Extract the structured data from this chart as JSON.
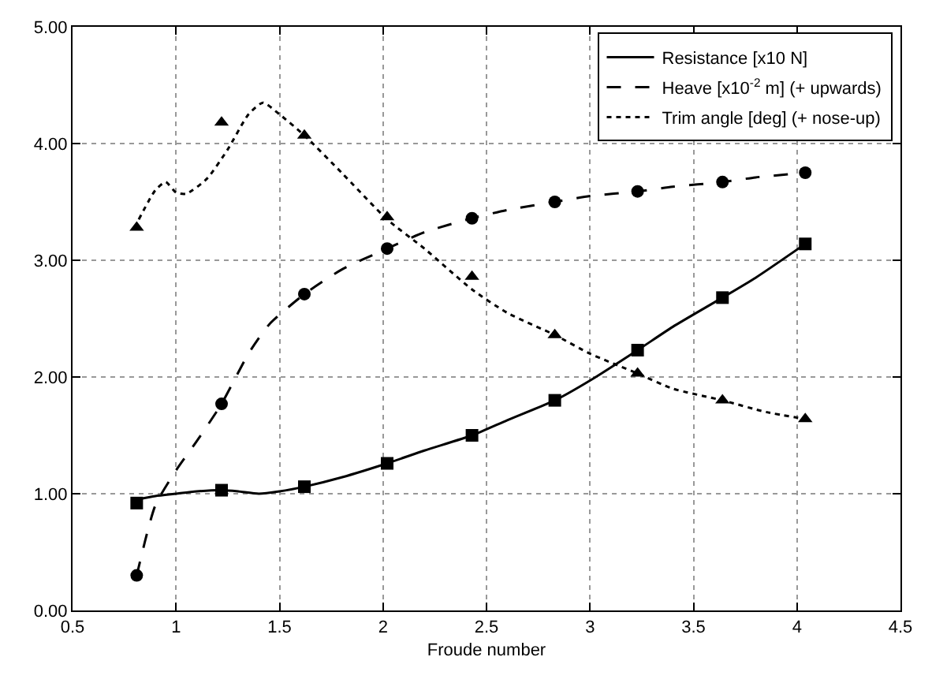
{
  "chart_data": {
    "type": "line",
    "xlabel": "Froude number",
    "xlim": [
      0.5,
      4.5
    ],
    "xticks": [
      0.5,
      1,
      1.5,
      2,
      2.5,
      3,
      3.5,
      4,
      4.5
    ],
    "ylim": [
      0,
      5
    ],
    "yticks": [
      {
        "value": 0,
        "label": "0.00"
      },
      {
        "value": 1,
        "label": "1.00"
      },
      {
        "value": 2,
        "label": "2.00"
      },
      {
        "value": 3,
        "label": "3.00"
      },
      {
        "value": 4,
        "label": "4.00"
      },
      {
        "value": 5,
        "label": "5.00"
      }
    ],
    "grid": true,
    "legend": "top right",
    "series": [
      {
        "name": "Resistance [x10 N]",
        "color": "#000000",
        "line_style": "solid",
        "marker": "none",
        "x": [
          0.81,
          0.9,
          1.0,
          1.1,
          1.22,
          1.3,
          1.4,
          1.5,
          1.62,
          1.8,
          2.02,
          2.2,
          2.43,
          2.6,
          2.83,
          3.0,
          3.23,
          3.4,
          3.64,
          3.8,
          4.04
        ],
        "values": [
          0.95,
          0.98,
          1.0,
          1.02,
          1.03,
          1.02,
          1.0,
          1.02,
          1.06,
          1.14,
          1.26,
          1.37,
          1.5,
          1.63,
          1.8,
          1.97,
          2.23,
          2.43,
          2.68,
          2.85,
          3.14
        ]
      },
      {
        "name": "Heave [x10$^{-2}$ m] (+ upwards)",
        "color": "#000000",
        "line_style": "dashed",
        "marker": "none",
        "x": [
          0.81,
          0.9,
          1.0,
          1.1,
          1.22,
          1.35,
          1.45,
          1.62,
          1.8,
          2.02,
          2.2,
          2.43,
          2.6,
          2.83,
          3.0,
          3.23,
          3.4,
          3.64,
          3.8,
          4.04
        ],
        "values": [
          0.3,
          0.9,
          1.2,
          1.45,
          1.77,
          2.2,
          2.45,
          2.71,
          2.92,
          3.1,
          3.24,
          3.36,
          3.43,
          3.5,
          3.55,
          3.59,
          3.63,
          3.67,
          3.71,
          3.75
        ]
      },
      {
        "name": "Trim angle [deg] (+ nose-up)",
        "color": "#000000",
        "line_style": "dotted",
        "marker": "none",
        "x": [
          0.82,
          0.9,
          0.95,
          1.0,
          1.05,
          1.15,
          1.25,
          1.35,
          1.42,
          1.5,
          1.62,
          1.8,
          2.02,
          2.2,
          2.43,
          2.6,
          2.83,
          3.0,
          3.23,
          3.4,
          3.64,
          3.85,
          4.04
        ],
        "values": [
          3.35,
          3.6,
          3.67,
          3.58,
          3.57,
          3.7,
          3.95,
          4.25,
          4.35,
          4.25,
          4.07,
          3.75,
          3.35,
          3.1,
          2.75,
          2.55,
          2.36,
          2.2,
          2.03,
          1.9,
          1.8,
          1.7,
          1.64
        ]
      },
      {
        "type": "scatter",
        "color": "#000000",
        "marker": "square",
        "x": [
          0.81,
          1.22,
          1.62,
          2.02,
          2.43,
          2.83,
          3.23,
          3.64,
          4.04
        ],
        "values": [
          0.92,
          1.03,
          1.06,
          1.26,
          1.5,
          1.8,
          2.23,
          2.68,
          3.14
        ]
      },
      {
        "type": "scatter",
        "color": "#000000",
        "marker": "circle",
        "x": [
          0.81,
          1.22,
          1.62,
          2.02,
          2.43,
          2.83,
          3.23,
          3.64,
          4.04
        ],
        "values": [
          0.3,
          1.77,
          2.71,
          3.1,
          3.36,
          3.5,
          3.59,
          3.67,
          3.75
        ]
      },
      {
        "type": "scatter",
        "color": "#000000",
        "marker": "triangle",
        "x": [
          0.81,
          1.22,
          1.62,
          2.02,
          2.43,
          2.83,
          3.23,
          3.64,
          4.04
        ],
        "values": [
          3.28,
          4.18,
          4.07,
          3.37,
          2.86,
          2.36,
          2.03,
          1.8,
          1.64
        ]
      }
    ]
  }
}
